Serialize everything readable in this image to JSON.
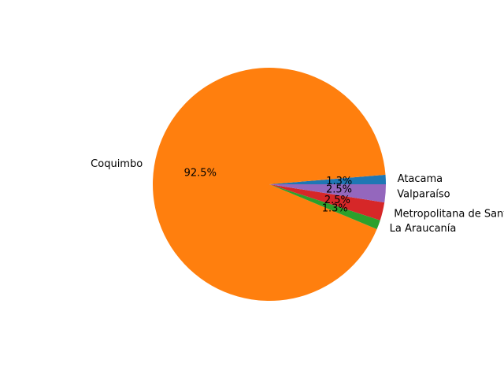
{
  "chart_data": {
    "type": "pie",
    "title": "",
    "start_angle_deg": 0,
    "direction": "counterclockwise",
    "slices": [
      {
        "label": "Atacama",
        "value": 1.3,
        "pct_label": "1.3%",
        "color": "#1f77b4"
      },
      {
        "label": "Coquimbo",
        "value": 92.5,
        "pct_label": "92.5%",
        "color": "#ff7f0e"
      },
      {
        "label": "La Araucanía",
        "value": 1.3,
        "pct_label": "1.3%",
        "color": "#2ca02c"
      },
      {
        "label": "Metropolitana de Santiago",
        "value": 2.5,
        "pct_label": "2.5%",
        "color": "#d62728"
      },
      {
        "label": "Valparaíso",
        "value": 2.5,
        "pct_label": "2.5%",
        "color": "#9467bd"
      }
    ]
  }
}
